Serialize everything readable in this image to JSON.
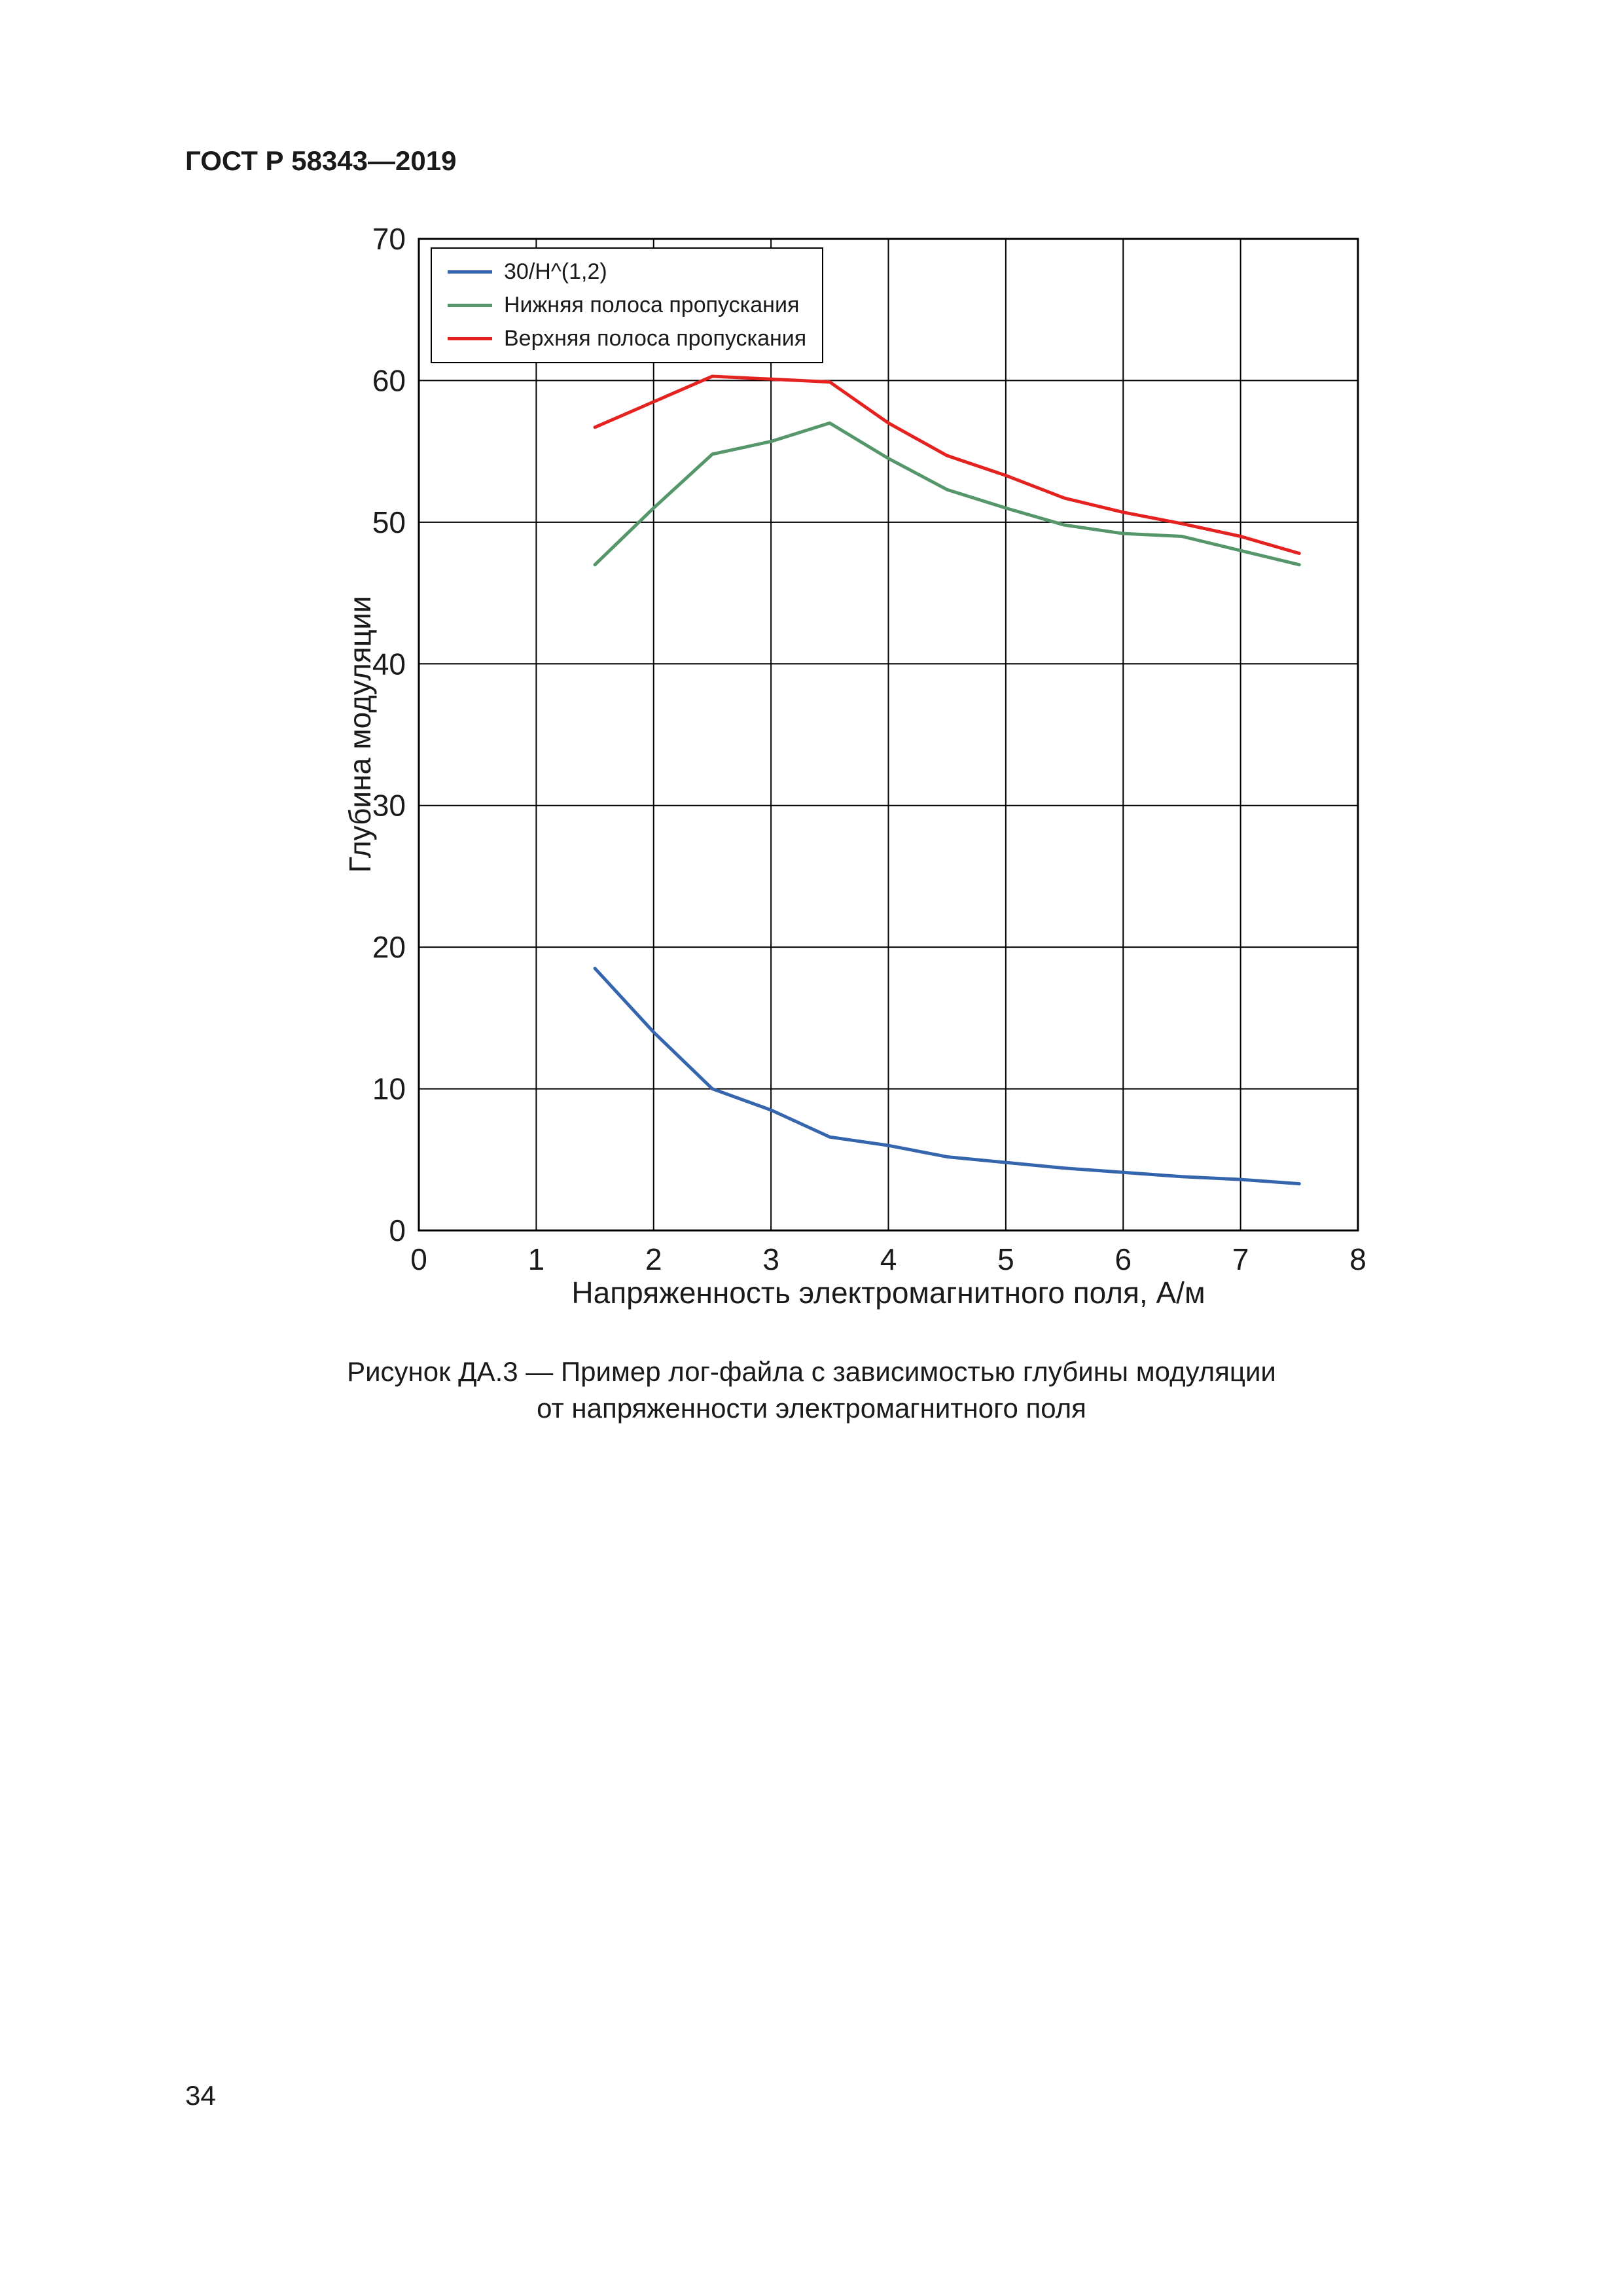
{
  "page": {
    "header": "ГОСТ Р 58343—2019",
    "page_number": "34",
    "caption_line1": "Рисунок ДА.3 — Пример лог-файла с зависимостью глубины модуляции",
    "caption_line2": "от напряженности электромагнитного поля"
  },
  "chart_data": {
    "type": "line",
    "title": "",
    "xlabel": "Напряженность электромагнитного поля, А/м",
    "ylabel": "Глубина модуляции",
    "xlim": [
      0,
      8
    ],
    "ylim": [
      0,
      70
    ],
    "xticks": [
      0,
      1,
      2,
      3,
      4,
      5,
      6,
      7,
      8
    ],
    "yticks": [
      0,
      10,
      20,
      30,
      40,
      50,
      60,
      70
    ],
    "grid": true,
    "legend_position": "upper-left",
    "x": [
      1.5,
      2,
      2.5,
      3,
      3.5,
      4,
      4.5,
      5,
      5.5,
      6,
      6.5,
      7,
      7.5
    ],
    "series": [
      {
        "name": "30/H^(1,2)",
        "color": "#3465ad",
        "values": [
          18.5,
          14,
          10,
          8.5,
          6.6,
          6.0,
          5.2,
          4.8,
          4.4,
          4.1,
          3.8,
          3.6,
          3.3
        ]
      },
      {
        "name": "Нижняя полоса пропускания",
        "color": "#55966b",
        "values": [
          47,
          51,
          54.8,
          55.7,
          57,
          54.5,
          52.3,
          51,
          49.8,
          49.2,
          49,
          48,
          47
        ]
      },
      {
        "name": "Верхняя полоса пропускания",
        "color": "#e42320",
        "values": [
          56.7,
          58.5,
          60.3,
          60.1,
          59.9,
          57,
          54.7,
          53.3,
          51.7,
          50.7,
          49.9,
          49,
          47.8
        ]
      }
    ]
  }
}
